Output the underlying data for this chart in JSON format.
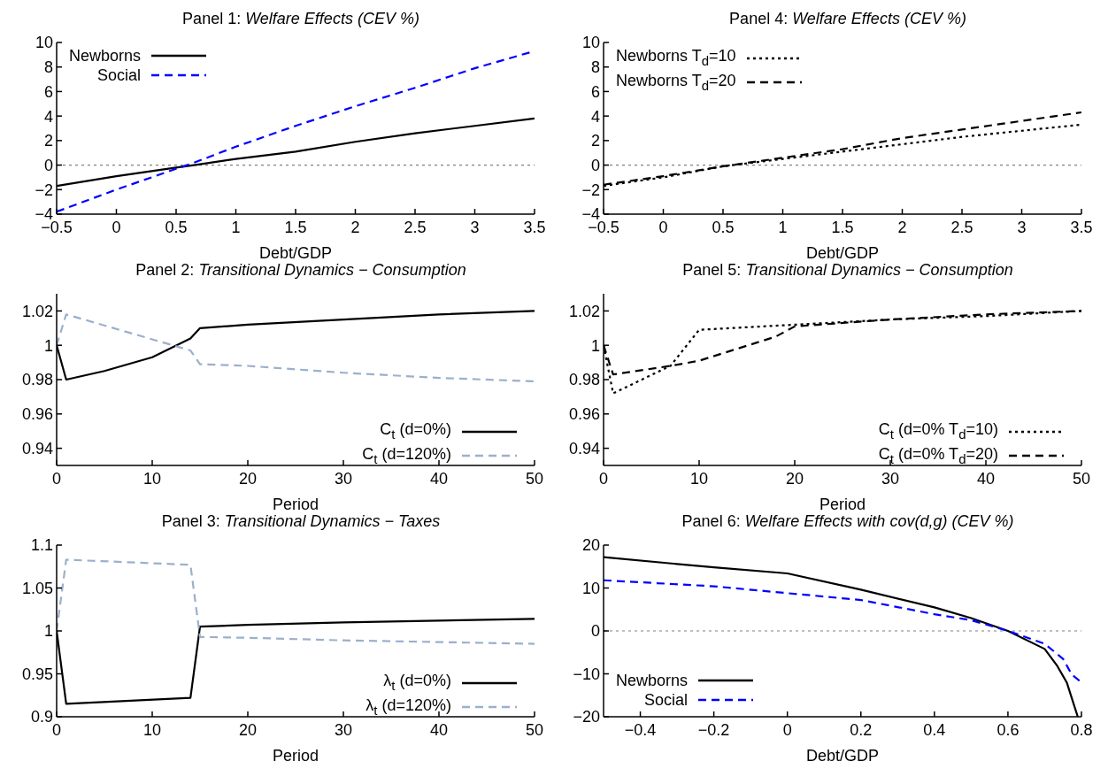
{
  "chart_data": [
    {
      "type": "line",
      "title": "Panel 1: Welfare Effects (CEV %)",
      "xlabel": "Debt/GDP",
      "x": [
        -0.5,
        0,
        0.5,
        0.65,
        1,
        1.5,
        2,
        2.5,
        3,
        3.5
      ],
      "series": [
        {
          "name": "Newborns",
          "color": "#000000",
          "line_style": "solid",
          "values": [
            -1.7,
            -0.9,
            -0.2,
            0,
            0.5,
            1.1,
            1.9,
            2.6,
            3.2,
            3.8
          ]
        },
        {
          "name": "Social",
          "color": "#0000ff",
          "line_style": "dashed",
          "values": [
            -3.8,
            -2,
            -0.3,
            0.2,
            1.5,
            3.2,
            4.8,
            6.3,
            7.9,
            9.3
          ]
        }
      ],
      "xlim": [
        -0.5,
        3.5
      ],
      "xticks": [
        {
          "value": -0.5,
          "label": "−0.5"
        },
        0,
        0.5,
        1,
        1.5,
        2,
        2.5,
        3,
        3.5
      ],
      "ylim": [
        -4,
        10
      ],
      "yticks": [
        {
          "value": -4,
          "label": "−4"
        },
        {
          "value": -2,
          "label": "−2"
        },
        0,
        2,
        4,
        6,
        8,
        10
      ],
      "ref_lines": [
        {
          "axis": "y",
          "value": 0,
          "color": "#808080",
          "line_style": "dotted"
        }
      ],
      "legend": "top left",
      "grid": false
    },
    {
      "type": "line",
      "title": "Panel 4: Welfare Effects (CEV %)",
      "xlabel": "Debt/GDP",
      "x": [
        -0.5,
        0,
        0.5,
        1,
        1.5,
        2,
        2.5,
        3,
        3.5
      ],
      "series": [
        {
          "name": "Newborns T$_{d}$=10",
          "color": "#000000",
          "line_style": "dotted",
          "values": [
            -1.7,
            -1,
            -0.1,
            0.5,
            1.1,
            1.7,
            2.3,
            2.8,
            3.3
          ]
        },
        {
          "name": "Newborns T$_{d}$=20",
          "color": "#000000",
          "line_style": "dashed",
          "values": [
            -1.6,
            -0.9,
            -0.1,
            0.6,
            1.3,
            2.2,
            2.9,
            3.6,
            4.3
          ]
        }
      ],
      "xlim": [
        -0.5,
        3.5
      ],
      "xticks": [
        {
          "value": -0.5,
          "label": "−0.5"
        },
        0,
        0.5,
        1,
        1.5,
        2,
        2.5,
        3,
        3.5
      ],
      "ylim": [
        -4,
        10
      ],
      "yticks": [
        {
          "value": -4,
          "label": "−4"
        },
        {
          "value": -2,
          "label": "−2"
        },
        0,
        2,
        4,
        6,
        8,
        10
      ],
      "ref_lines": [
        {
          "axis": "y",
          "value": 0,
          "color": "#808080",
          "line_style": "dotted"
        }
      ],
      "legend": "top left",
      "grid": false
    },
    {
      "type": "line",
      "title": "Panel 2: Transitional Dynamics − Consumption",
      "xlabel": "Period",
      "series": [
        {
          "name": "C$_{t}$ (d=0%)",
          "color": "#000000",
          "line_style": "solid",
          "x": [
            0,
            1,
            5,
            10,
            14,
            15,
            20,
            30,
            40,
            50
          ],
          "values": [
            1.0,
            0.98,
            0.985,
            0.993,
            1.004,
            1.01,
            1.012,
            1.015,
            1.018,
            1.02
          ]
        },
        {
          "name": "C$_{t}$ (d=120%)",
          "color": "#9ab0cc",
          "line_style": "dashed",
          "x": [
            0,
            1,
            14,
            15,
            20,
            30,
            40,
            50
          ],
          "values": [
            1.0,
            1.018,
            0.997,
            0.989,
            0.988,
            0.984,
            0.981,
            0.979
          ]
        }
      ],
      "xlim": [
        0,
        50
      ],
      "xticks": [
        0,
        10,
        20,
        30,
        40,
        50
      ],
      "ylim": [
        0.93,
        1.03
      ],
      "yticks": [
        0.94,
        0.96,
        0.98,
        1,
        1.02
      ],
      "legend": "bottom right",
      "grid": false
    },
    {
      "type": "line",
      "title": "Panel 5: Transitional Dynamics − Consumption",
      "xlabel": "Period",
      "series": [
        {
          "name": "C$_{t}$ (d=0% T$_{d}$=10)",
          "color": "#000000",
          "line_style": "dotted",
          "x": [
            0,
            1,
            7,
            10,
            20,
            30,
            40,
            50
          ],
          "values": [
            1.0,
            0.972,
            0.988,
            1.009,
            1.012,
            1.015,
            1.017,
            1.02
          ]
        },
        {
          "name": "C$_{t}$ (d=0% T$_{d}$=20)",
          "color": "#000000",
          "line_style": "dashed",
          "x": [
            0,
            1,
            7,
            10,
            18,
            20,
            30,
            40,
            50
          ],
          "values": [
            1.0,
            0.983,
            0.988,
            0.991,
            1.005,
            1.011,
            1.015,
            1.018,
            1.02
          ]
        }
      ],
      "xlim": [
        0,
        50
      ],
      "xticks": [
        0,
        10,
        20,
        30,
        40,
        50
      ],
      "ylim": [
        0.93,
        1.03
      ],
      "yticks": [
        0.94,
        0.96,
        0.98,
        1,
        1.02
      ],
      "legend": "bottom right",
      "grid": false
    },
    {
      "type": "line",
      "title": "Panel 3: Transitional Dynamics − Taxes",
      "xlabel": "Period",
      "series": [
        {
          "name": "λ$_{t}$ (d=0%)",
          "color": "#000000",
          "line_style": "solid",
          "x": [
            0,
            1,
            14,
            15,
            20,
            30,
            40,
            50
          ],
          "values": [
            1.0,
            0.915,
            0.922,
            1.005,
            1.007,
            1.01,
            1.012,
            1.014
          ]
        },
        {
          "name": "λ$_{t}$ (d=120%)",
          "color": "#9ab0cc",
          "line_style": "dashed",
          "x": [
            0,
            1,
            14,
            15,
            20,
            30,
            40,
            50
          ],
          "values": [
            1.0,
            1.083,
            1.077,
            0.993,
            0.992,
            0.989,
            0.987,
            0.985
          ]
        }
      ],
      "xlim": [
        0,
        50
      ],
      "xticks": [
        0,
        10,
        20,
        30,
        40,
        50
      ],
      "ylim": [
        0.9,
        1.1
      ],
      "yticks": [
        0.9,
        0.95,
        1,
        1.05,
        1.1
      ],
      "legend": "bottom right",
      "grid": false
    },
    {
      "type": "line",
      "title": "Panel 6: Welfare Effects with cov(d,g) (CEV %)",
      "xlabel": "Debt/GDP",
      "series": [
        {
          "name": "Newborns",
          "color": "#000000",
          "line_style": "solid",
          "x": [
            -0.5,
            -0.2,
            0,
            0.2,
            0.4,
            0.5,
            0.6,
            0.7,
            0.733,
            0.76,
            0.79
          ],
          "values": [
            17.2,
            14.8,
            13.4,
            9.6,
            5.5,
            3,
            0,
            -4.2,
            -8,
            -12,
            -20
          ]
        },
        {
          "name": "Social",
          "color": "#0000ff",
          "line_style": "dashed",
          "x": [
            -0.5,
            -0.2,
            0,
            0.2,
            0.4,
            0.5,
            0.6,
            0.7,
            0.75,
            0.774,
            0.8
          ],
          "values": [
            11.8,
            10.4,
            8.8,
            7.2,
            3.9,
            2.5,
            0,
            -3,
            -6.5,
            -10.2,
            -12
          ]
        }
      ],
      "xlim": [
        -0.5,
        0.8
      ],
      "xticks": [
        {
          "value": -0.4,
          "label": "−0.4"
        },
        {
          "value": -0.2,
          "label": "−0.2"
        },
        0,
        0.2,
        0.4,
        0.6,
        0.8
      ],
      "ylim": [
        -20,
        20
      ],
      "yticks": [
        {
          "value": -20,
          "label": "−20"
        },
        {
          "value": -10,
          "label": "−10"
        },
        0,
        10,
        20
      ],
      "ref_lines": [
        {
          "axis": "y",
          "value": 0,
          "color": "#808080",
          "line_style": "dotted"
        }
      ],
      "legend": "bottom left",
      "grid": false
    }
  ]
}
